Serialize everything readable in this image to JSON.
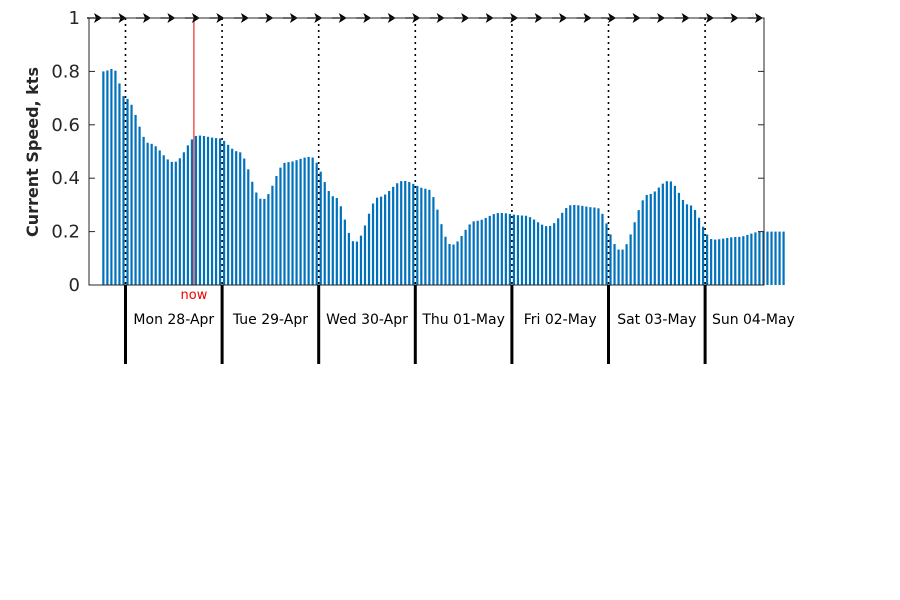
{
  "chart_data": {
    "type": "bar",
    "ylabel": "Current Speed, kts",
    "ylim": [
      0,
      1
    ],
    "yticks": [
      "0",
      "0.2",
      "0.4",
      "0.6",
      "0.8",
      "1"
    ],
    "bar_color": "#0072bd",
    "now_color": "#ee0000",
    "now_label": "now",
    "now_hours": 17,
    "start_hours": -5.5,
    "end_hours": 164,
    "step_hours": 1,
    "days": [
      "Mon 28-Apr",
      "Tue 29-Apr",
      "Wed 30-Apr",
      "Thu 01-May",
      "Fri 02-May",
      "Sat 03-May",
      "Sun 04-May"
    ],
    "arrow_count": 28,
    "key_points": [
      [
        -5.5,
        0.8
      ],
      [
        -3,
        0.81
      ],
      [
        0,
        0.7
      ],
      [
        6,
        0.53
      ],
      [
        12,
        0.46
      ],
      [
        18,
        0.56
      ],
      [
        23,
        0.55
      ],
      [
        28,
        0.5
      ],
      [
        34,
        0.32
      ],
      [
        40,
        0.46
      ],
      [
        46,
        0.48
      ],
      [
        52,
        0.33
      ],
      [
        57,
        0.16
      ],
      [
        63,
        0.33
      ],
      [
        69,
        0.39
      ],
      [
        75,
        0.36
      ],
      [
        81,
        0.15
      ],
      [
        87,
        0.24
      ],
      [
        93,
        0.27
      ],
      [
        99,
        0.26
      ],
      [
        105,
        0.22
      ],
      [
        111,
        0.3
      ],
      [
        117,
        0.29
      ],
      [
        123,
        0.13
      ],
      [
        130,
        0.34
      ],
      [
        135,
        0.39
      ],
      [
        140,
        0.3
      ],
      [
        146,
        0.17
      ],
      [
        152,
        0.18
      ],
      [
        158,
        0.2
      ],
      [
        164,
        0.2
      ]
    ]
  }
}
